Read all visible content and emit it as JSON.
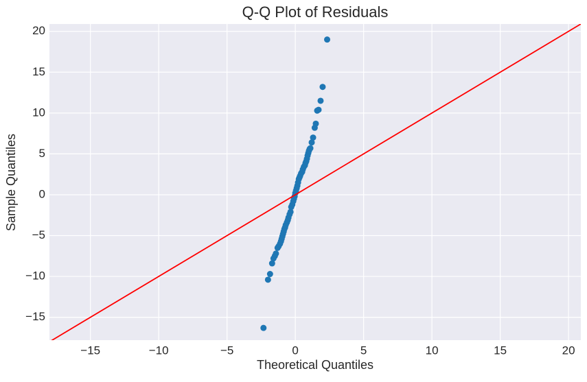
{
  "chart_data": {
    "type": "scatter",
    "title": "Q-Q Plot of Residuals",
    "x_label": "Theoretical Quantiles",
    "y_label": "Sample Quantiles",
    "x": [
      -2.33,
      -2.0,
      -1.85,
      -1.7,
      -1.6,
      -1.5,
      -1.42,
      -1.3,
      -1.22,
      -1.12,
      -1.05,
      -1.0,
      -0.95,
      -0.9,
      -0.85,
      -0.8,
      -0.75,
      -0.7,
      -0.62,
      -0.55,
      -0.5,
      -0.42,
      -0.35,
      -0.3,
      -0.22,
      -0.15,
      -0.1,
      -0.05,
      0.0,
      0.05,
      0.1,
      0.15,
      0.2,
      0.25,
      0.3,
      0.35,
      0.42,
      0.5,
      0.55,
      0.62,
      0.7,
      0.75,
      0.8,
      0.85,
      0.9,
      0.95,
      1.0,
      1.05,
      1.1,
      1.2,
      1.3,
      1.42,
      1.5,
      1.6,
      1.7,
      1.85,
      2.0,
      2.33
    ],
    "values": [
      -16.3,
      -10.4,
      -9.7,
      -8.4,
      -7.8,
      -7.5,
      -7.2,
      -6.5,
      -6.3,
      -6.0,
      -5.7,
      -5.4,
      -5.1,
      -4.8,
      -4.5,
      -4.2,
      -4.0,
      -3.7,
      -3.4,
      -3.1,
      -2.8,
      -2.4,
      -2.1,
      -1.5,
      -1.2,
      -0.8,
      -0.5,
      -0.2,
      0.2,
      0.5,
      0.8,
      1.1,
      1.5,
      1.9,
      2.1,
      2.3,
      2.6,
      2.8,
      3.1,
      3.4,
      3.6,
      3.9,
      4.1,
      4.4,
      4.8,
      5.1,
      5.4,
      5.6,
      5.7,
      6.4,
      7.0,
      8.2,
      8.7,
      10.3,
      10.4,
      11.5,
      13.2,
      19.0
    ],
    "color": "#1f77b4",
    "line": "45",
    "line_color": "#ff0000",
    "xlim": [
      -18,
      20.9
    ],
    "ylim": [
      -17.8,
      20.9
    ],
    "xticks": [
      {
        "value": -15,
        "label": "−15"
      },
      {
        "value": -10,
        "label": "−10"
      },
      {
        "value": -5,
        "label": "−5"
      },
      0,
      5,
      10,
      15,
      20
    ],
    "yticks": [
      {
        "value": -15,
        "label": "−15"
      },
      {
        "value": -10,
        "label": "−10"
      },
      {
        "value": -5,
        "label": "−5"
      },
      0,
      5,
      10,
      15,
      20
    ],
    "grid": true
  }
}
